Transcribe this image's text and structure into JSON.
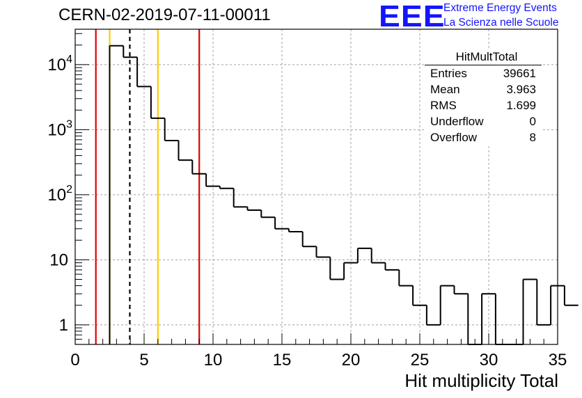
{
  "header": {
    "run_title": "CERN-02-2019-07-11-00011",
    "logo_text": "EEE",
    "org_line1": "Extreme Energy Events",
    "org_line2": "La Scienza nelle Scuole",
    "logo_color": "#1414ff"
  },
  "stats_box": {
    "title": "HitMultTotal",
    "rows": [
      {
        "label": "Entries",
        "value": "39661"
      },
      {
        "label": "Mean",
        "value": "3.963"
      },
      {
        "label": "RMS",
        "value": "1.699"
      },
      {
        "label": "Underflow",
        "value": "0"
      },
      {
        "label": "Overflow",
        "value": "8"
      }
    ]
  },
  "chart_data": {
    "type": "bar",
    "histogram": "step",
    "xlabel": "Hit multiplicity Total",
    "ylabel": "",
    "xlim": [
      0,
      35
    ],
    "ylim": [
      0.5,
      35000
    ],
    "yscale": "log",
    "grid": true,
    "x_ticks": [
      "0",
      "5",
      "10",
      "15",
      "20",
      "25",
      "30",
      "35"
    ],
    "y_ticks": [
      {
        "value": 1,
        "label": "1"
      },
      {
        "value": 10,
        "label": "10"
      },
      {
        "value": 100,
        "label": "10",
        "exp": "2"
      },
      {
        "value": 1000,
        "label": "10",
        "exp": "3"
      },
      {
        "value": 10000,
        "label": "10",
        "exp": "4"
      }
    ],
    "bin_edges_start": 2.5,
    "bin_width": 1,
    "counts": [
      19500,
      13000,
      4600,
      1500,
      680,
      340,
      210,
      135,
      125,
      65,
      58,
      45,
      30,
      27,
      16,
      11,
      5,
      9,
      15,
      9,
      7,
      4,
      2,
      1,
      4,
      3,
      0,
      3,
      0,
      0,
      5,
      1,
      4,
      2
    ],
    "vertical_lines": [
      {
        "x": 1.5,
        "color": "#e00000",
        "style": "solid"
      },
      {
        "x": 2.5,
        "color": "#ffcc00",
        "style": "solid"
      },
      {
        "x": 3.963,
        "color": "#000000",
        "style": "dashed"
      },
      {
        "x": 6.0,
        "color": "#ffcc00",
        "style": "solid"
      },
      {
        "x": 9.0,
        "color": "#e00000",
        "style": "solid"
      }
    ]
  }
}
